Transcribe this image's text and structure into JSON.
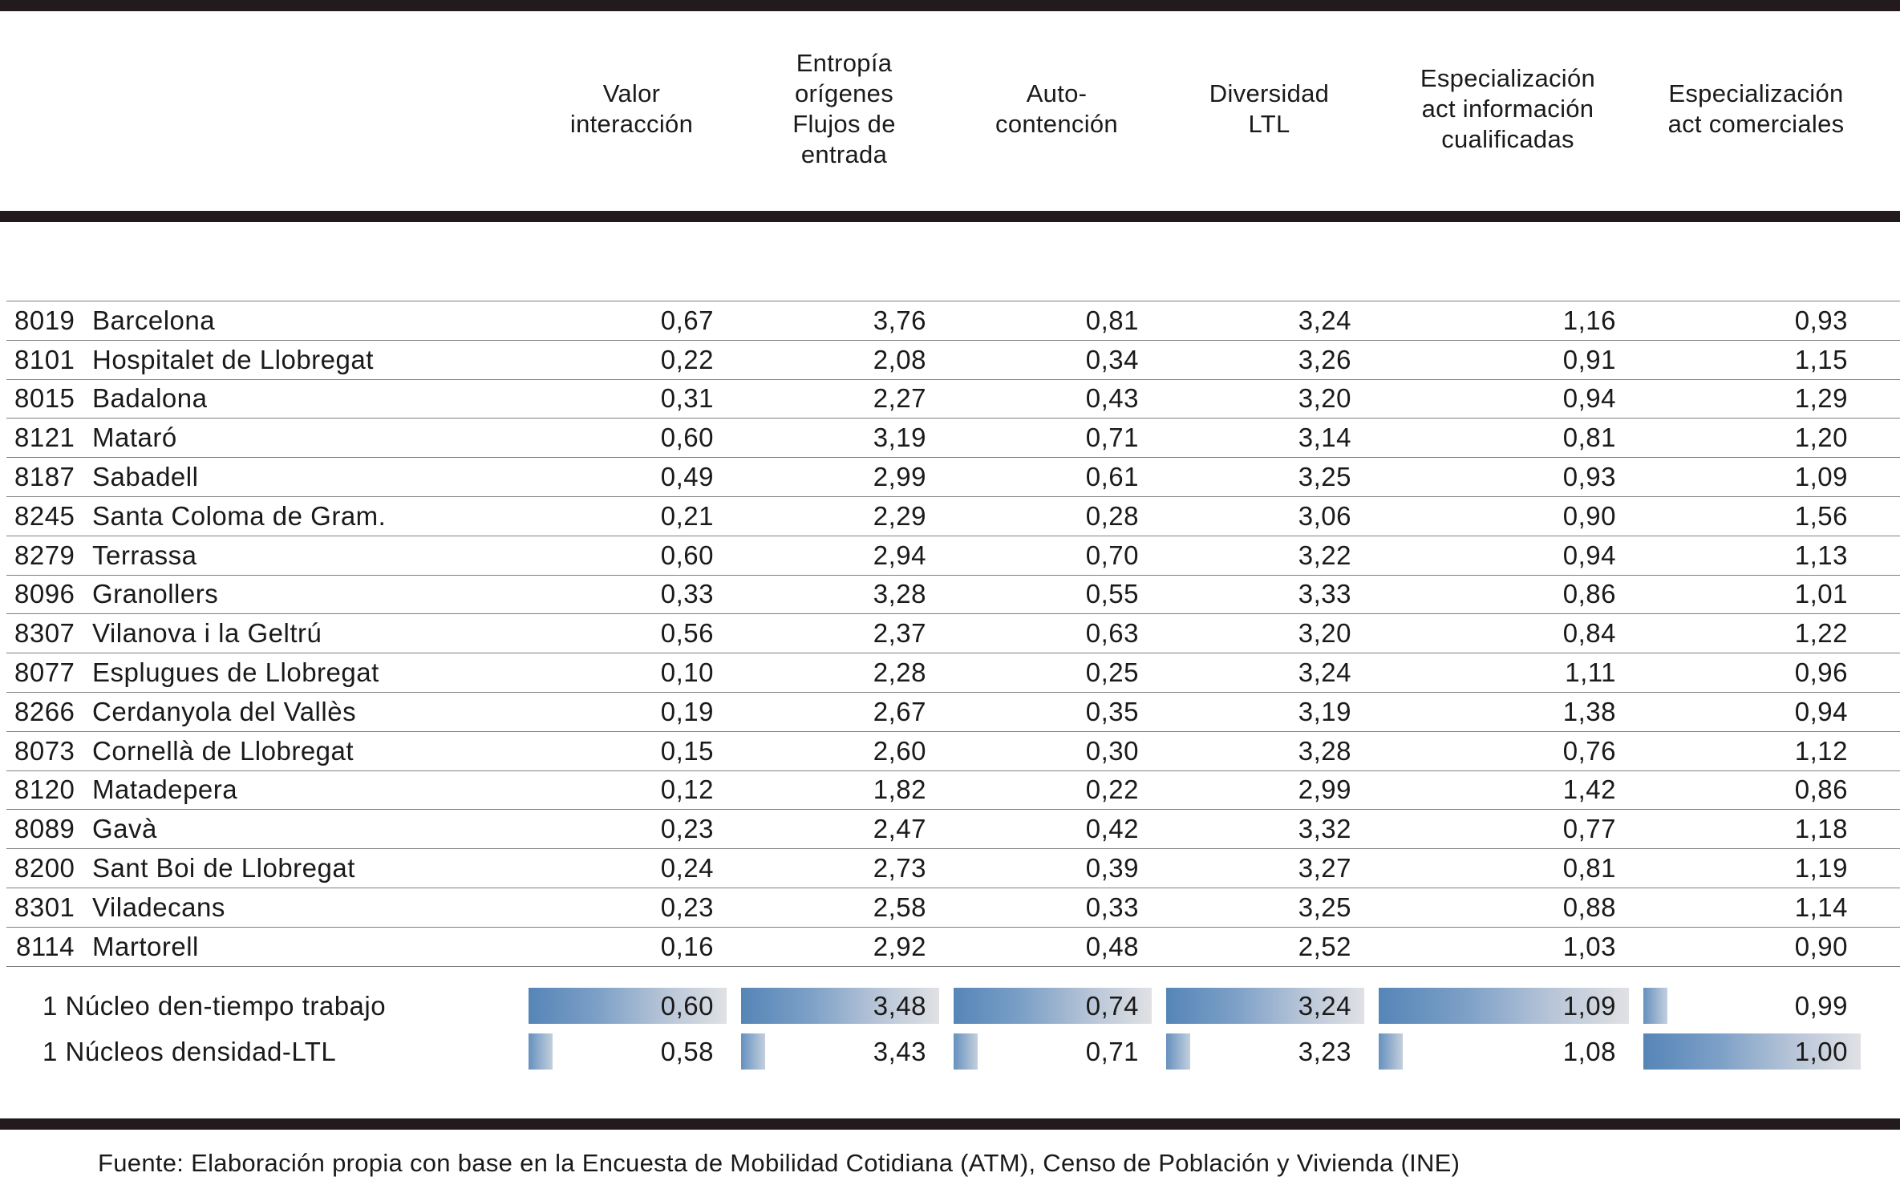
{
  "table": {
    "columns": [
      "",
      "Valor\ninteracción",
      "Entropía\norígenes\nFlujos de\nentrada",
      "Auto-\ncontención",
      "Diversidad\nLTL",
      "Especialización\nact información\ncualificadas",
      "Especialización\nact comerciales"
    ],
    "rows": [
      {
        "code": "8019",
        "name": "Barcelona",
        "values": [
          "0,67",
          "3,76",
          "0,81",
          "3,24",
          "1,16",
          "0,93"
        ]
      },
      {
        "code": "8101",
        "name": "Hospitalet de Llobregat",
        "values": [
          "0,22",
          "2,08",
          "0,34",
          "3,26",
          "0,91",
          "1,15"
        ]
      },
      {
        "code": "8015",
        "name": "Badalona",
        "values": [
          "0,31",
          "2,27",
          "0,43",
          "3,20",
          "0,94",
          "1,29"
        ]
      },
      {
        "code": "8121",
        "name": "Mataró",
        "values": [
          "0,60",
          "3,19",
          "0,71",
          "3,14",
          "0,81",
          "1,20"
        ]
      },
      {
        "code": "8187",
        "name": "Sabadell",
        "values": [
          "0,49",
          "2,99",
          "0,61",
          "3,25",
          "0,93",
          "1,09"
        ]
      },
      {
        "code": "8245",
        "name": "Santa Coloma de Gram.",
        "values": [
          "0,21",
          "2,29",
          "0,28",
          "3,06",
          "0,90",
          "1,56"
        ]
      },
      {
        "code": "8279",
        "name": "Terrassa",
        "values": [
          "0,60",
          "2,94",
          "0,70",
          "3,22",
          "0,94",
          "1,13"
        ]
      },
      {
        "code": "8096",
        "name": "Granollers",
        "values": [
          "0,33",
          "3,28",
          "0,55",
          "3,33",
          "0,86",
          "1,01"
        ]
      },
      {
        "code": "8307",
        "name": "Vilanova i la Geltrú",
        "values": [
          "0,56",
          "2,37",
          "0,63",
          "3,20",
          "0,84",
          "1,22"
        ]
      },
      {
        "code": "8077",
        "name": "Esplugues de Llobregat",
        "values": [
          "0,10",
          "2,28",
          "0,25",
          "3,24",
          "1,11",
          "0,96"
        ]
      },
      {
        "code": "8266",
        "name": "Cerdanyola del Vallès",
        "values": [
          "0,19",
          "2,67",
          "0,35",
          "3,19",
          "1,38",
          "0,94"
        ]
      },
      {
        "code": "8073",
        "name": "Cornellà de Llobregat",
        "values": [
          "0,15",
          "2,60",
          "0,30",
          "3,28",
          "0,76",
          "1,12"
        ]
      },
      {
        "code": "8120",
        "name": "Matadepera",
        "values": [
          "0,12",
          "1,82",
          "0,22",
          "2,99",
          "1,42",
          "0,86"
        ]
      },
      {
        "code": "8089",
        "name": "Gavà",
        "values": [
          "0,23",
          "2,47",
          "0,42",
          "3,32",
          "0,77",
          "1,18"
        ]
      },
      {
        "code": "8200",
        "name": "Sant Boi de Llobregat",
        "values": [
          "0,24",
          "2,73",
          "0,39",
          "3,27",
          "0,81",
          "1,19"
        ]
      },
      {
        "code": "8301",
        "name": "Viladecans",
        "values": [
          "0,23",
          "2,58",
          "0,33",
          "3,25",
          "0,88",
          "1,14"
        ]
      },
      {
        "code": "8114",
        "name": "Martorell",
        "values": [
          "0,16",
          "2,92",
          "0,48",
          "2,52",
          "1,03",
          "0,90"
        ]
      }
    ],
    "summary_rows": [
      {
        "label": "1 Núcleo den-tiempo trabajo",
        "values": [
          "0,60",
          "3,48",
          "0,74",
          "3,24",
          "1,09",
          "0,99"
        ],
        "bars": [
          "long",
          "long",
          "long",
          "long",
          "long",
          "short"
        ]
      },
      {
        "label": "1 Núcleos densidad-LTL",
        "values": [
          "0,58",
          "3,43",
          "0,71",
          "3,23",
          "1,08",
          "1,00"
        ],
        "bars": [
          "short",
          "short",
          "short",
          "short",
          "short",
          "long"
        ]
      }
    ]
  },
  "footer": {
    "source": "Fuente: Elaboración propia con base en la Encuesta de Mobilidad Cotidiana (ATM), Censo de Población y Vivienda (INE)"
  },
  "colors": {
    "rule": "#221a1c",
    "row_line": "#7f7f7f",
    "bar_gradient_start": "#5585b7",
    "bar_gradient_end": "#e0e1e4"
  }
}
